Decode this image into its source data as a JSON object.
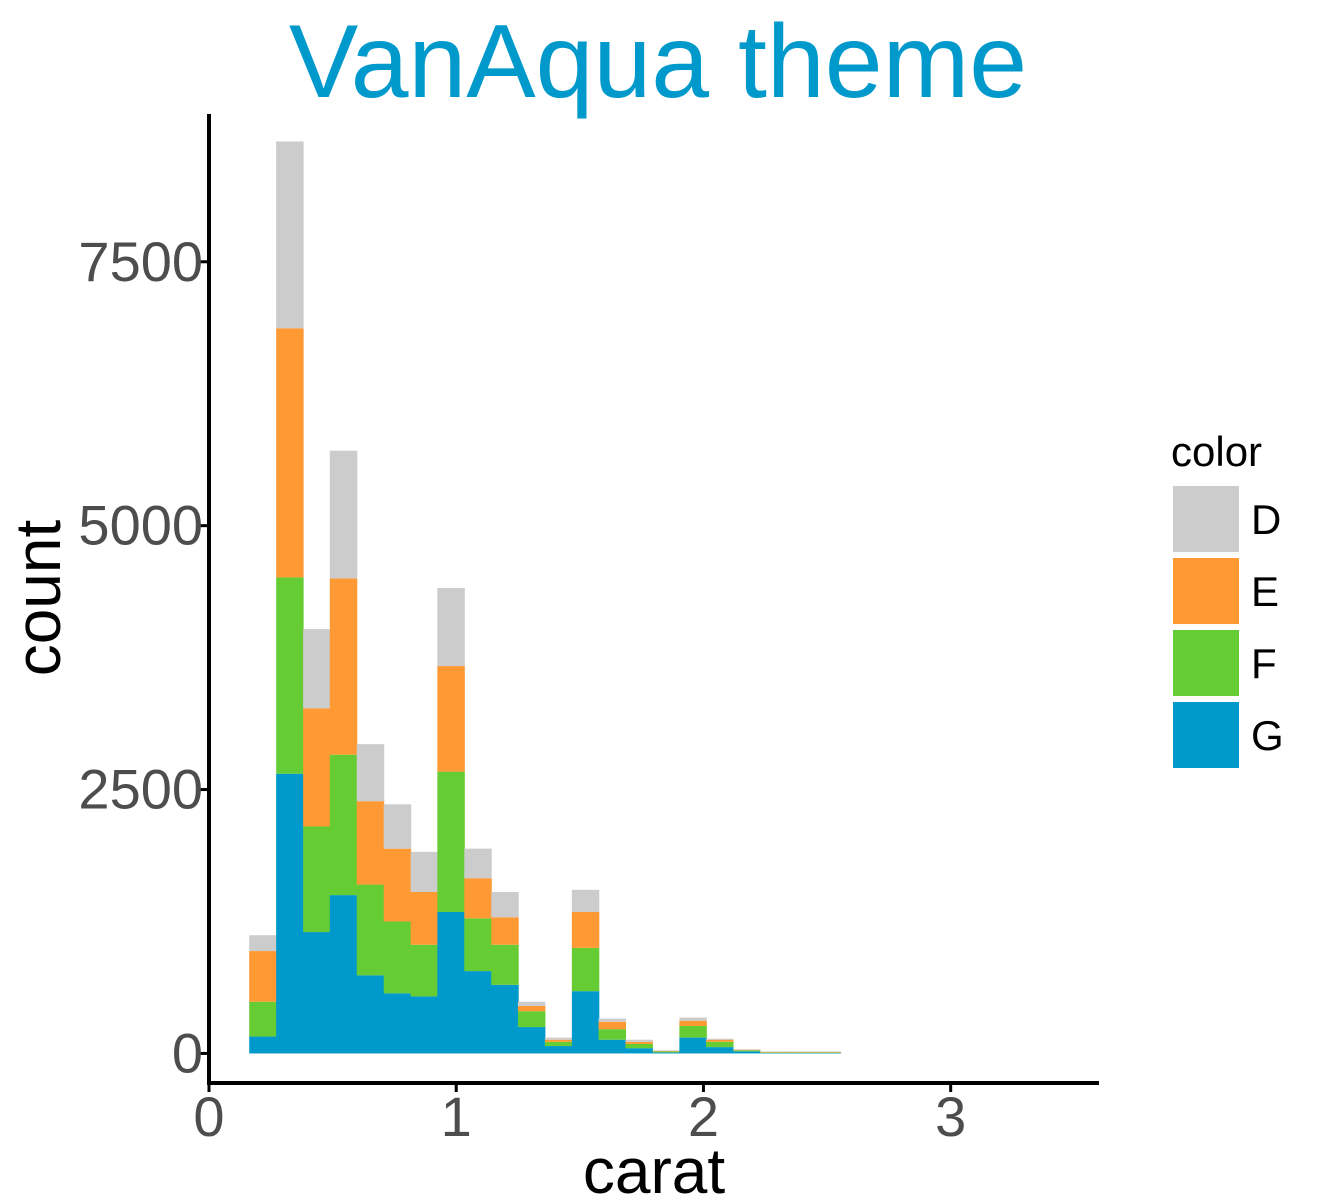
{
  "chart_data": {
    "type": "bar",
    "stacked": true,
    "title": "VanAqua theme",
    "title_color": "#0099CC",
    "xlabel": "carat",
    "ylabel": "count",
    "xlim": [
      0,
      3.6
    ],
    "ylim": [
      -280,
      8900
    ],
    "x_ticks": [
      0,
      1,
      2,
      3
    ],
    "x_tick_labels": [
      "0",
      "1",
      "2",
      "3"
    ],
    "y_ticks": [
      0,
      2500,
      5000,
      7500
    ],
    "y_tick_labels": [
      "0",
      "2500",
      "5000",
      "7500"
    ],
    "grid": false,
    "legend": {
      "title": "color",
      "position": "right"
    },
    "bin_width": 0.1087,
    "x": [
      0.217,
      0.326,
      0.435,
      0.543,
      0.652,
      0.761,
      0.87,
      0.978,
      1.087,
      1.196,
      1.304,
      1.413,
      1.522,
      1.63,
      1.739,
      1.848,
      1.957,
      2.065,
      2.174,
      2.283,
      2.391,
      2.5
    ],
    "series": [
      {
        "name": "G",
        "color": "#0099CC",
        "values": [
          160,
          2650,
          1150,
          1500,
          740,
          570,
          540,
          1340,
          780,
          650,
          250,
          70,
          590,
          130,
          50,
          10,
          150,
          60,
          20,
          5,
          5,
          5
        ]
      },
      {
        "name": "F",
        "color": "#66CC33",
        "values": [
          330,
          1860,
          1000,
          1330,
          860,
          680,
          490,
          1330,
          500,
          380,
          150,
          40,
          410,
          100,
          40,
          10,
          110,
          50,
          10,
          5,
          5,
          5
        ]
      },
      {
        "name": "E",
        "color": "#FF9933",
        "values": [
          480,
          2360,
          1120,
          1670,
          790,
          690,
          500,
          1000,
          380,
          260,
          50,
          20,
          340,
          70,
          20,
          5,
          50,
          20,
          5,
          5,
          5,
          5
        ]
      },
      {
        "name": "D",
        "color": "#CCCCCC",
        "values": [
          150,
          1770,
          750,
          1210,
          540,
          420,
          380,
          740,
          280,
          240,
          40,
          20,
          210,
          30,
          20,
          5,
          30,
          10,
          5,
          5,
          5,
          5
        ]
      }
    ]
  }
}
